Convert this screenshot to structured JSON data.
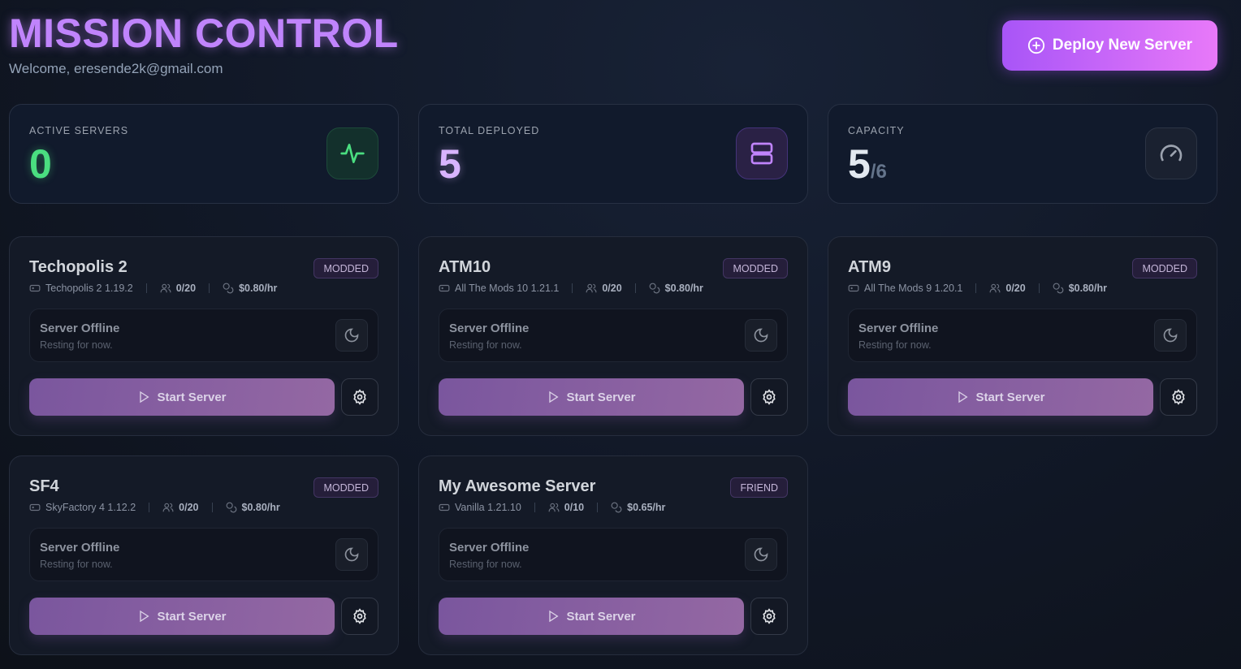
{
  "header": {
    "title": "MISSION CONTROL",
    "welcome": "Welcome, eresende2k@gmail.com",
    "deploy_label": "Deploy New Server"
  },
  "stats": [
    {
      "label": "ACTIVE SERVERS",
      "value": "0",
      "color": "#4ade80",
      "icon": "activity-icon"
    },
    {
      "label": "TOTAL DEPLOYED",
      "value": "5",
      "color": "#d8b4fe",
      "icon": "server-icon"
    },
    {
      "label": "CAPACITY",
      "value": "5",
      "total": "/6",
      "color": "#e2e8f0",
      "icon": "gauge-icon"
    }
  ],
  "servers": [
    {
      "name": "Techopolis 2",
      "badge": "MODDED",
      "version": "Techopolis 2 1.19.2",
      "players": "0/20",
      "price": "$0.80/hr",
      "status": "Server Offline",
      "status_desc": "Resting for now.",
      "start_label": "Start Server"
    },
    {
      "name": "ATM10",
      "badge": "MODDED",
      "version": "All The Mods 10 1.21.1",
      "players": "0/20",
      "price": "$0.80/hr",
      "status": "Server Offline",
      "status_desc": "Resting for now.",
      "start_label": "Start Server"
    },
    {
      "name": "ATM9",
      "badge": "MODDED",
      "version": "All The Mods 9 1.20.1",
      "players": "0/20",
      "price": "$0.80/hr",
      "status": "Server Offline",
      "status_desc": "Resting for now.",
      "start_label": "Start Server"
    },
    {
      "name": "SF4",
      "badge": "MODDED",
      "version": "SkyFactory 4 1.12.2",
      "players": "0/20",
      "price": "$0.80/hr",
      "status": "Server Offline",
      "status_desc": "Resting for now.",
      "start_label": "Start Server"
    },
    {
      "name": "My Awesome Server",
      "badge": "FRIEND",
      "version": "Vanilla 1.21.10",
      "players": "0/10",
      "price": "$0.65/hr",
      "status": "Server Offline",
      "status_desc": "Resting for now.",
      "start_label": "Start Server"
    }
  ]
}
